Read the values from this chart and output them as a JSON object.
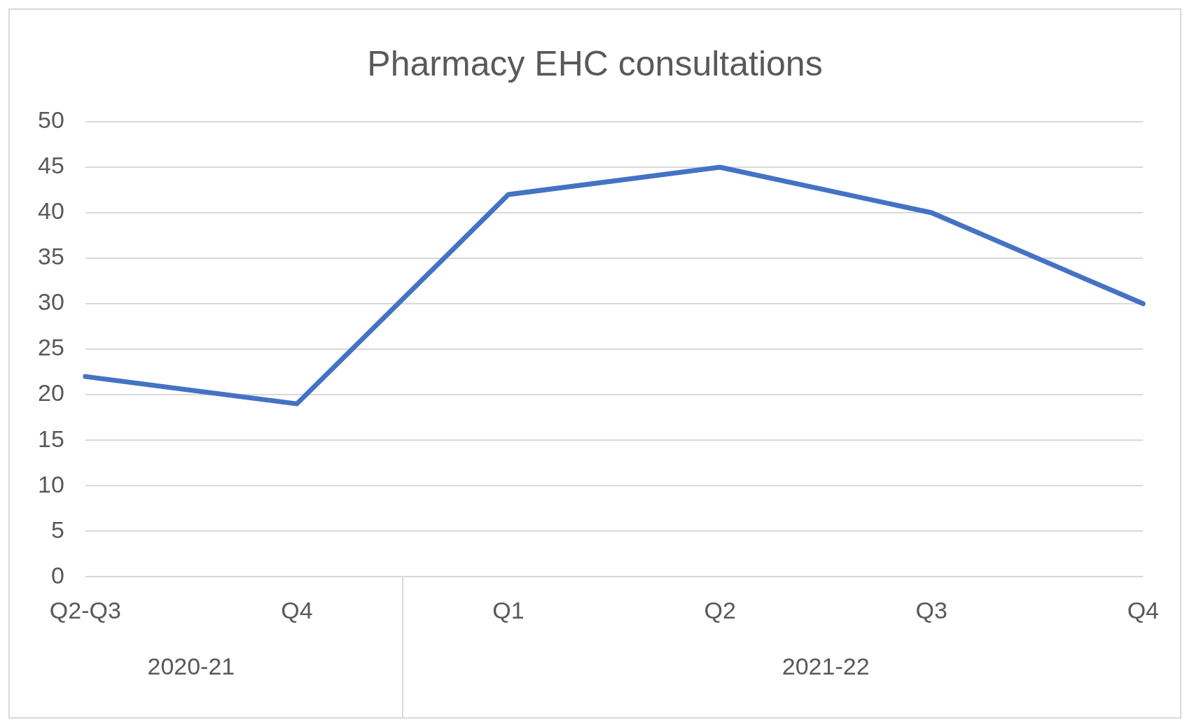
{
  "chart_data": {
    "type": "line",
    "title": "Pharmacy EHC consultations",
    "categories": [
      "Q2-Q3",
      "Q4",
      "Q1",
      "Q2",
      "Q3",
      "Q4"
    ],
    "series": [
      {
        "color": "#4472c4",
        "values": [
          22,
          19,
          42,
          45,
          40,
          30
        ]
      }
    ],
    "ylim": [
      0,
      50
    ],
    "yticks": [
      0,
      5,
      10,
      15,
      20,
      25,
      30,
      35,
      40,
      45,
      50
    ],
    "grid": "y",
    "legend": false,
    "marker": "none",
    "line_style": "solid",
    "annotations": [
      "2020-21",
      "2021-22"
    ]
  }
}
